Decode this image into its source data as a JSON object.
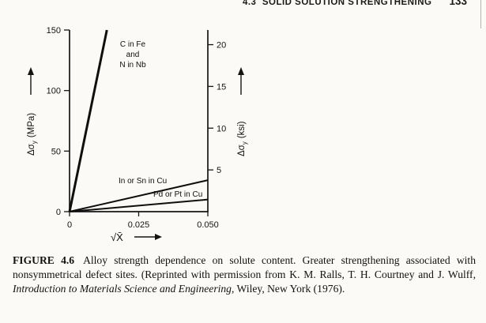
{
  "page": {
    "header": {
      "section": "4.3",
      "title": "SOLID SOLUTION STRENGTHENING",
      "page_number": "133"
    }
  },
  "chart_data": {
    "type": "line",
    "title": "",
    "xlabel": "√X̄",
    "ylabel_left": "Δσy (MPa)",
    "ylabel_right": "Δσy (ksi)",
    "ylabel_left_parts": {
      "sym": "Δσ",
      "sub": "y",
      "unit": "(MPa)"
    },
    "ylabel_right_parts": {
      "sym": "Δσ",
      "sub": "y",
      "unit": "(ksi)"
    },
    "xlim": [
      0,
      0.05
    ],
    "ylim_mpa": [
      0,
      150
    ],
    "grid": false,
    "legend_position": "in-plot annotations",
    "x_ticks": [
      0,
      0.025,
      0.05
    ],
    "x_tick_labels": [
      "0",
      "0.025",
      "0.050"
    ],
    "y_left_ticks": [
      0,
      50,
      100,
      150
    ],
    "y_left_tick_labels": [
      "0",
      "50",
      "100",
      "150"
    ],
    "y_right_ticks_ksi": [
      5,
      10,
      15,
      20
    ],
    "y_right_tick_labels": [
      "5",
      "10",
      "15",
      "20"
    ],
    "mpa_per_ksi": 6.895,
    "series": [
      {
        "name": "C in Fe and N in Nb",
        "label_lines": [
          "C in Fe",
          "and",
          "N in Nb"
        ],
        "points_sqrtX_MPa": [
          [
            0,
            0
          ],
          [
            0.0135,
            150
          ]
        ]
      },
      {
        "name": "In or Sn in Cu",
        "label_lines": [
          "In or Sn in Cu"
        ],
        "points_sqrtX_MPa": [
          [
            0,
            0
          ],
          [
            0.05,
            26
          ]
        ]
      },
      {
        "name": "Pd or Pt in Cu",
        "label_lines": [
          "Pd or Pt in Cu"
        ],
        "points_sqrtX_MPa": [
          [
            0,
            0
          ],
          [
            0.05,
            10
          ]
        ]
      }
    ]
  },
  "caption": {
    "label": "FIGURE 4.6",
    "text_before_italic": "Alloy strength dependence on solute content. Greater strengthening associated with nonsymmetrical defect sites. (Reprinted with permission from K. M. Ralls, T. H. Courtney and J. Wulff, ",
    "italic_title": "Introduction to Materials Science and Engineering",
    "text_after_italic": ", Wiley, New York (1976)."
  }
}
